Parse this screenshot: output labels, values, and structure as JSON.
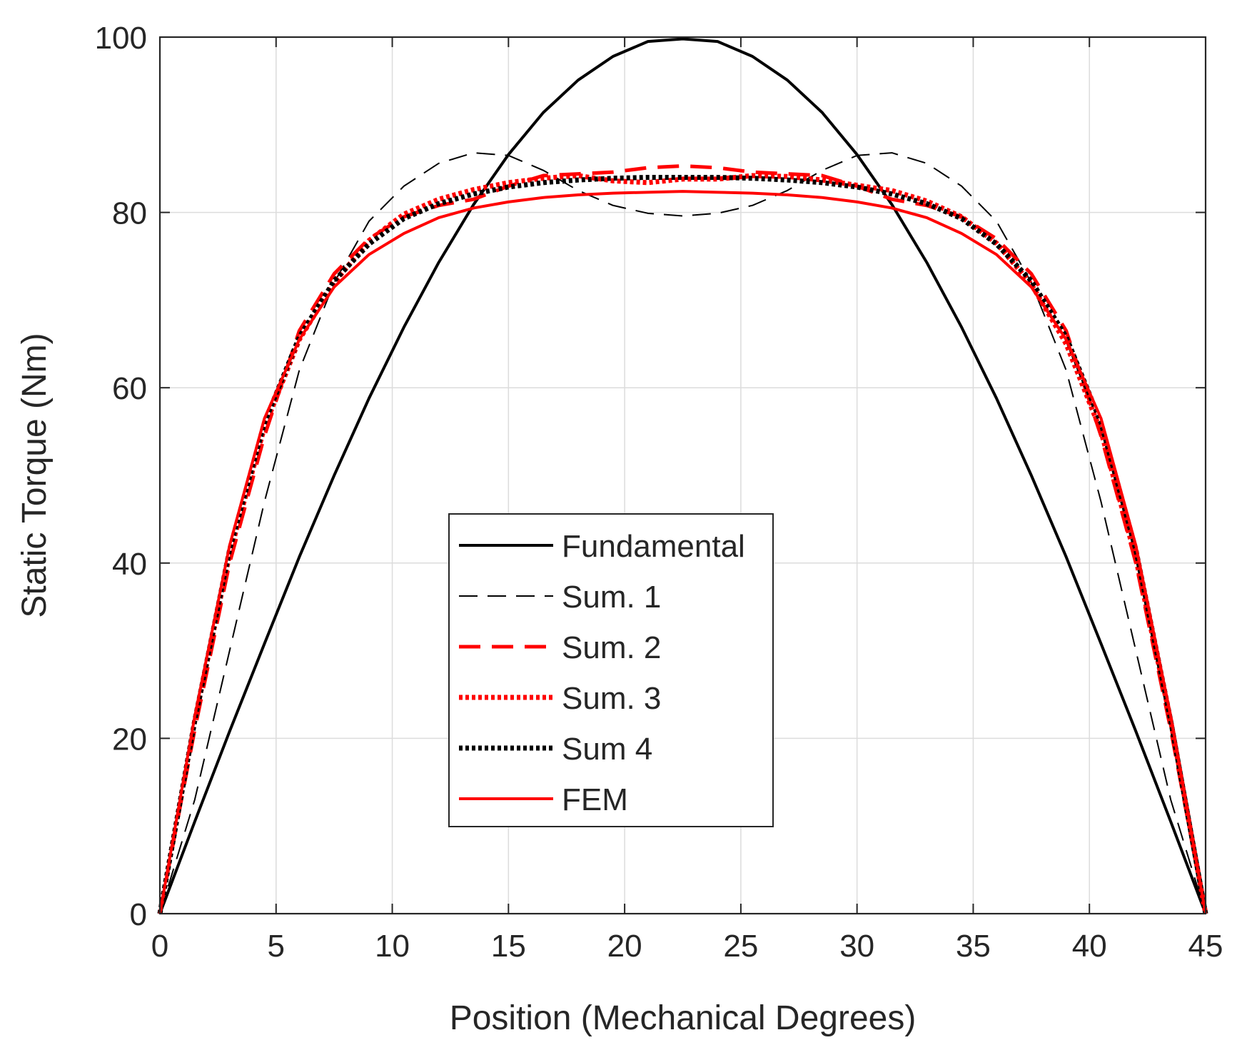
{
  "chart_data": {
    "type": "line",
    "title": "",
    "xlabel": "Position (Mechanical Degrees)",
    "ylabel": "Static Torque (Nm)",
    "xlim": [
      0,
      45
    ],
    "ylim": [
      0,
      100
    ],
    "xticks": [
      0,
      5,
      10,
      15,
      20,
      25,
      30,
      35,
      40,
      45
    ],
    "yticks": [
      0,
      20,
      40,
      60,
      80,
      100
    ],
    "grid": true,
    "legend_position": "center",
    "x": [
      0,
      1.5,
      3,
      4.5,
      6,
      7.5,
      9,
      10.5,
      12,
      13.5,
      15,
      16.5,
      18,
      19.5,
      21,
      22.5,
      24,
      25.5,
      27,
      28.5,
      30,
      31.5,
      33,
      34.5,
      36,
      37.5,
      39,
      40.5,
      42,
      43.5,
      45
    ],
    "series": [
      {
        "name": "Fundamental",
        "color": "#000000",
        "style": "solid",
        "values": [
          0,
          10.5,
          20.8,
          30.8,
          40.7,
          50.0,
          58.8,
          66.9,
          74.3,
          80.9,
          86.6,
          91.4,
          95.1,
          97.8,
          99.5,
          99.8,
          99.5,
          97.8,
          95.1,
          91.4,
          86.6,
          80.9,
          74.3,
          66.9,
          58.8,
          50.0,
          40.7,
          30.8,
          20.8,
          10.5,
          0
        ]
      },
      {
        "name": "Sum. 1",
        "color": "#000000",
        "style": "dashed-thin",
        "values": [
          0,
          13.0,
          30.0,
          47.0,
          62.0,
          72.0,
          79.0,
          83.0,
          85.6,
          86.8,
          86.5,
          84.8,
          82.5,
          80.8,
          79.9,
          79.6,
          79.9,
          80.8,
          82.5,
          84.8,
          86.5,
          86.8,
          85.6,
          83.0,
          79.0,
          72.0,
          62.0,
          47.0,
          30.0,
          13.0,
          0
        ]
      },
      {
        "name": "Sum. 2",
        "color": "#ff0000",
        "style": "dashed",
        "values": [
          0,
          21.0,
          40.0,
          54.5,
          66.5,
          73.0,
          77.0,
          79.5,
          80.8,
          81.5,
          83.0,
          84.2,
          84.4,
          84.6,
          85.1,
          85.3,
          85.1,
          84.6,
          84.4,
          84.2,
          83.0,
          81.5,
          80.8,
          79.5,
          77.0,
          73.0,
          66.5,
          54.5,
          40.0,
          21.0,
          0
        ]
      },
      {
        "name": "Sum. 3",
        "color": "#ff0000",
        "style": "dotted",
        "values": [
          0,
          22.0,
          41.0,
          55.5,
          65.5,
          72.0,
          76.8,
          79.8,
          81.5,
          82.6,
          83.4,
          83.9,
          84.2,
          83.6,
          83.4,
          83.8,
          83.8,
          84.2,
          84.1,
          83.7,
          83.1,
          82.5,
          81.3,
          79.5,
          76.5,
          71.8,
          65.0,
          55.0,
          40.5,
          22.0,
          0
        ]
      },
      {
        "name": "Sum 4",
        "color": "#000000",
        "style": "dotted",
        "values": [
          0,
          22.0,
          41.5,
          56.0,
          65.8,
          72.2,
          76.4,
          79.3,
          81.0,
          82.1,
          82.9,
          83.4,
          83.7,
          83.9,
          84.0,
          84.0,
          84.0,
          83.9,
          83.7,
          83.4,
          82.9,
          82.1,
          81.0,
          79.3,
          76.4,
          72.2,
          65.8,
          56.0,
          41.5,
          22.0,
          0
        ]
      },
      {
        "name": "FEM",
        "color": "#ff0000",
        "style": "solid",
        "values": [
          0,
          22.5,
          42.0,
          56.5,
          65.5,
          71.5,
          75.2,
          77.6,
          79.4,
          80.5,
          81.2,
          81.7,
          82.0,
          82.2,
          82.3,
          82.4,
          82.3,
          82.2,
          82.0,
          81.7,
          81.2,
          80.5,
          79.4,
          77.6,
          75.2,
          71.5,
          65.5,
          56.5,
          42.0,
          22.5,
          0
        ]
      }
    ]
  }
}
